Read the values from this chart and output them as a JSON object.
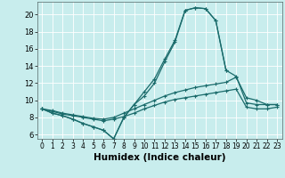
{
  "xlabel": "Humidex (Indice chaleur)",
  "background_color": "#c8eded",
  "grid_color": "#b8d8d8",
  "line_color": "#1a6b6b",
  "xlim": [
    -0.5,
    23.5
  ],
  "ylim": [
    5.5,
    21.5
  ],
  "xticks": [
    0,
    1,
    2,
    3,
    4,
    5,
    6,
    7,
    8,
    9,
    10,
    11,
    12,
    13,
    14,
    15,
    16,
    17,
    18,
    19,
    20,
    21,
    22,
    23
  ],
  "yticks": [
    6,
    8,
    10,
    12,
    14,
    16,
    18,
    20
  ],
  "series": [
    {
      "x": [
        0,
        1,
        2,
        3,
        4,
        5,
        6,
        7,
        8,
        9,
        10,
        11,
        12,
        13,
        14,
        15,
        16,
        17,
        18,
        19,
        20,
        21,
        22,
        23
      ],
      "y": [
        9.0,
        8.5,
        8.2,
        7.8,
        7.3,
        6.9,
        6.5,
        5.5,
        8.0,
        9.5,
        11.0,
        12.5,
        14.8,
        17.0,
        20.5,
        20.8,
        20.7,
        19.3,
        13.5,
        null,
        null,
        null,
        null,
        null
      ]
    },
    {
      "x": [
        0,
        1,
        2,
        3,
        4,
        5,
        6,
        7,
        8,
        9,
        10,
        11,
        12,
        13,
        14,
        15,
        16,
        17,
        18,
        19,
        20,
        21,
        22,
        23
      ],
      "y": [
        9.0,
        8.5,
        8.2,
        7.8,
        7.3,
        6.9,
        6.5,
        5.5,
        8.0,
        9.5,
        10.5,
        12.0,
        14.5,
        16.8,
        20.5,
        20.8,
        20.7,
        19.3,
        13.5,
        12.8,
        9.7,
        9.5,
        9.5,
        9.5
      ]
    },
    {
      "x": [
        0,
        1,
        2,
        3,
        4,
        5,
        6,
        7,
        8,
        9,
        10,
        11,
        12,
        13,
        14,
        15,
        16,
        17,
        18,
        19,
        20,
        21,
        22,
        23
      ],
      "y": [
        9.0,
        8.8,
        8.5,
        8.3,
        8.1,
        7.9,
        7.8,
        8.0,
        8.5,
        9.0,
        9.5,
        10.0,
        10.5,
        10.9,
        11.2,
        11.5,
        11.7,
        11.9,
        12.1,
        12.7,
        10.3,
        10.0,
        9.5,
        9.5
      ]
    },
    {
      "x": [
        0,
        1,
        2,
        3,
        4,
        5,
        6,
        7,
        8,
        9,
        10,
        11,
        12,
        13,
        14,
        15,
        16,
        17,
        18,
        19,
        20,
        21,
        22,
        23
      ],
      "y": [
        9.0,
        8.7,
        8.4,
        8.2,
        8.0,
        7.8,
        7.6,
        7.8,
        8.1,
        8.5,
        9.0,
        9.4,
        9.8,
        10.1,
        10.3,
        10.5,
        10.7,
        10.9,
        11.1,
        11.3,
        9.2,
        9.0,
        9.0,
        9.2
      ]
    }
  ]
}
